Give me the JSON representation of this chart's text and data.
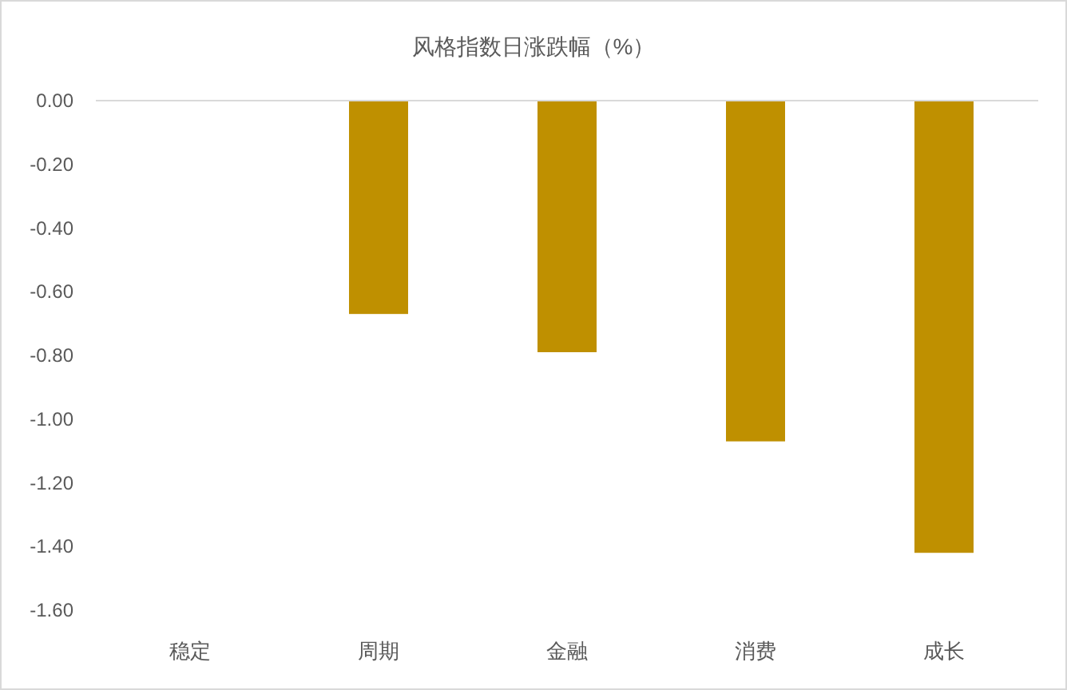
{
  "chart_data": {
    "type": "bar",
    "title": "风格指数日涨跌幅（%）",
    "categories": [
      "稳定",
      "周期",
      "金融",
      "消费",
      "成长"
    ],
    "values": [
      0,
      -0.67,
      -0.79,
      -1.07,
      -1.42
    ],
    "color": "#bf9000",
    "ylim": [
      -1.6,
      0
    ],
    "yticks": [
      {
        "value": 0,
        "label": "0.00"
      },
      {
        "value": -0.2,
        "label": "-0.20"
      },
      {
        "value": -0.4,
        "label": "-0.40"
      },
      {
        "value": -0.6,
        "label": "-0.60"
      },
      {
        "value": -0.8,
        "label": "-0.80"
      },
      {
        "value": -1.0,
        "label": "-1.00"
      },
      {
        "value": -1.2,
        "label": "-1.20"
      },
      {
        "value": -1.4,
        "label": "-1.40"
      },
      {
        "value": -1.6,
        "label": "-1.60"
      }
    ],
    "grid": false
  }
}
